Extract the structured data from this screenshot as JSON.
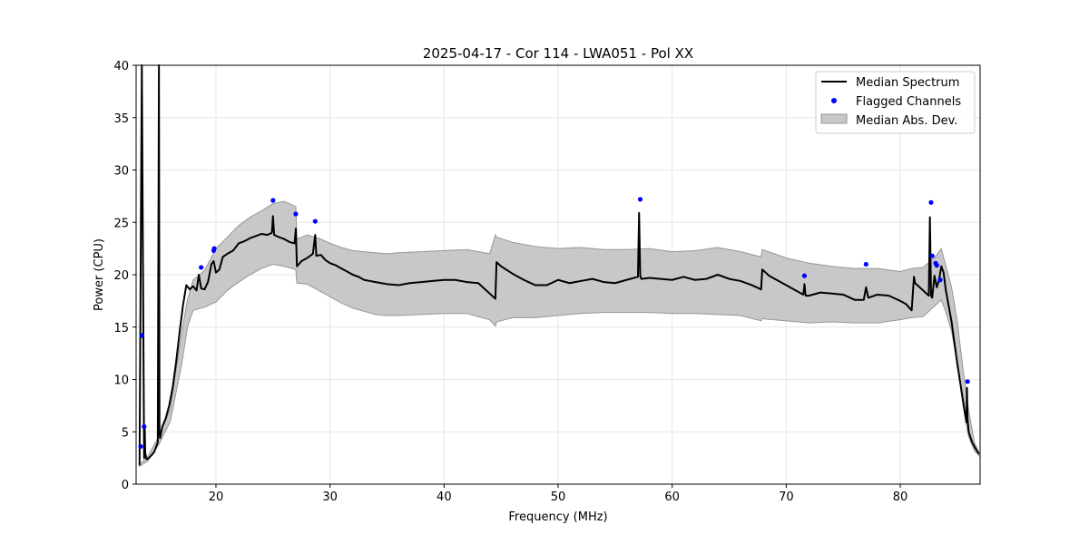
{
  "chart_data": {
    "type": "line",
    "title": "2025-04-17 - Cor 114 - LWA051 - Pol XX",
    "xlabel": "Frequency (MHz)",
    "ylabel": "Power (CPU)",
    "xlim": [
      13,
      87
    ],
    "ylim": [
      0,
      40
    ],
    "xticks": [
      20,
      30,
      40,
      50,
      60,
      70,
      80
    ],
    "yticks": [
      0,
      5,
      10,
      15,
      20,
      25,
      30,
      35,
      40
    ],
    "grid": true,
    "legend_position": "top-right",
    "legend": [
      "Median Spectrum",
      "Flagged Channels",
      "Median Abs. Dev."
    ],
    "colors": {
      "line": "#000000",
      "flagged": "#0000ff",
      "band_fill": "#c8c8c8",
      "band_edge": "#969696",
      "grid": "#e6e6e6"
    },
    "series": [
      {
        "name": "Median Spectrum",
        "x": [
          13.3,
          13.5,
          13.7,
          13.75,
          13.8,
          13.9,
          14.0,
          14.3,
          14.6,
          14.9,
          15.0,
          15.05,
          15.1,
          15.3,
          15.6,
          15.9,
          16.2,
          16.5,
          16.8,
          17.1,
          17.4,
          17.7,
          18.0,
          18.3,
          18.5,
          18.7,
          19.0,
          19.3,
          19.6,
          19.8,
          20.0,
          20.3,
          20.6,
          21.0,
          21.5,
          22.0,
          22.5,
          23.0,
          23.5,
          24.0,
          24.5,
          24.9,
          25.0,
          25.1,
          25.5,
          26.0,
          26.5,
          26.9,
          27.0,
          27.1,
          27.5,
          28.0,
          28.5,
          28.7,
          28.8,
          29.2,
          29.6,
          30.0,
          30.5,
          31.0,
          31.5,
          32.0,
          32.5,
          33.0,
          33.5,
          34.0,
          34.5,
          35.0,
          36.0,
          37.0,
          38.0,
          39.0,
          40.0,
          41.0,
          42.0,
          43.0,
          44.0,
          44.5,
          44.6,
          45.0,
          46.0,
          47.0,
          48.0,
          49.0,
          50.0,
          51.0,
          52.0,
          53.0,
          54.0,
          55.0,
          56.0,
          57.0,
          57.1,
          57.2,
          57.3,
          58.0,
          59.0,
          60.0,
          61.0,
          62.0,
          63.0,
          64.0,
          65.0,
          66.0,
          67.0,
          67.8,
          67.9,
          68.5,
          69.0,
          70.0,
          71.0,
          71.5,
          71.6,
          71.7,
          72.0,
          73.0,
          74.0,
          75.0,
          76.0,
          76.8,
          77.0,
          77.2,
          78.0,
          79.0,
          80.0,
          80.5,
          81.0,
          81.2,
          81.3,
          82.0,
          82.5,
          82.6,
          82.7,
          82.8,
          83.0,
          83.2,
          83.4,
          83.6,
          83.8,
          84.0,
          84.5,
          85.0,
          85.5,
          85.8,
          85.85,
          85.9,
          86.0,
          86.3,
          86.6,
          86.9
        ],
        "values": [
          1.8,
          40.0,
          2.5,
          5.5,
          3.0,
          2.4,
          2.4,
          2.7,
          3.1,
          4.0,
          40.0,
          5.0,
          4.4,
          5.5,
          6.3,
          7.5,
          9.2,
          11.6,
          14.4,
          17.0,
          19.0,
          18.6,
          18.9,
          18.5,
          20.0,
          18.7,
          18.6,
          19.3,
          21.0,
          21.3,
          20.2,
          20.5,
          21.7,
          22.0,
          22.3,
          23.0,
          23.2,
          23.5,
          23.7,
          23.9,
          23.8,
          24.0,
          25.6,
          23.8,
          23.6,
          23.4,
          23.1,
          23.0,
          24.4,
          20.8,
          21.3,
          21.6,
          22.0,
          23.8,
          21.8,
          21.9,
          21.4,
          21.1,
          20.9,
          20.6,
          20.3,
          20.0,
          19.8,
          19.5,
          19.4,
          19.3,
          19.2,
          19.1,
          19.0,
          19.2,
          19.3,
          19.4,
          19.5,
          19.5,
          19.3,
          19.2,
          18.2,
          17.7,
          21.2,
          20.8,
          20.1,
          19.5,
          19.0,
          19.0,
          19.5,
          19.2,
          19.4,
          19.6,
          19.3,
          19.2,
          19.5,
          19.8,
          25.9,
          19.9,
          19.6,
          19.7,
          19.6,
          19.5,
          19.8,
          19.5,
          19.6,
          20.0,
          19.6,
          19.4,
          19.0,
          18.6,
          20.5,
          19.9,
          19.6,
          19.0,
          18.4,
          18.1,
          19.1,
          18.0,
          18.0,
          18.3,
          18.2,
          18.1,
          17.6,
          17.6,
          18.8,
          17.8,
          18.1,
          18.0,
          17.5,
          17.2,
          16.6,
          19.8,
          19.2,
          18.5,
          18.0,
          25.5,
          18.0,
          17.8,
          19.9,
          18.8,
          19.5,
          20.8,
          20.2,
          18.5,
          15.5,
          11.5,
          8.0,
          5.9,
          9.2,
          6.2,
          5.0,
          4.0,
          3.4,
          2.9
        ]
      },
      {
        "name": "Median Abs. Dev.",
        "x": [
          13.3,
          14.0,
          15.0,
          16.0,
          17.0,
          17.5,
          18.0,
          19.0,
          20.0,
          21.0,
          22.0,
          23.0,
          24.0,
          25.0,
          26.0,
          27.0,
          27.1,
          28.0,
          29.0,
          30.0,
          31.0,
          32.0,
          33.0,
          34.0,
          35.0,
          36.0,
          38.0,
          40.0,
          42.0,
          44.0,
          44.5,
          44.6,
          46.0,
          48.0,
          50.0,
          52.0,
          54.0,
          56.0,
          58.0,
          60.0,
          62.0,
          64.0,
          66.0,
          67.8,
          67.9,
          70.0,
          72.0,
          74.0,
          76.0,
          78.0,
          80.0,
          81.0,
          82.0,
          83.0,
          83.6,
          84.0,
          84.5,
          85.0,
          85.5,
          86.0,
          86.5,
          86.9
        ],
        "upper": [
          1.9,
          2.6,
          4.6,
          7.2,
          14.5,
          17.6,
          19.5,
          20.4,
          22.5,
          23.6,
          24.7,
          25.5,
          26.1,
          26.8,
          27.0,
          26.5,
          23.4,
          23.8,
          23.5,
          23.0,
          22.6,
          22.3,
          22.2,
          22.1,
          22.0,
          22.1,
          22.2,
          22.3,
          22.4,
          22.0,
          23.8,
          23.6,
          23.1,
          22.7,
          22.5,
          22.6,
          22.4,
          22.4,
          22.5,
          22.2,
          22.3,
          22.6,
          22.2,
          21.7,
          22.4,
          21.6,
          21.1,
          20.8,
          20.6,
          20.6,
          20.3,
          20.6,
          20.7,
          21.6,
          22.5,
          20.8,
          18.8,
          15.5,
          11.0,
          7.0,
          4.0,
          3.0
        ],
        "lower": [
          1.7,
          2.2,
          3.8,
          6.0,
          11.5,
          15.0,
          16.6,
          16.9,
          17.4,
          18.5,
          19.3,
          20.0,
          20.6,
          21.0,
          20.8,
          20.5,
          19.2,
          19.1,
          18.5,
          17.9,
          17.3,
          16.8,
          16.5,
          16.2,
          16.1,
          16.1,
          16.2,
          16.3,
          16.3,
          15.7,
          15.1,
          15.5,
          15.9,
          15.9,
          16.1,
          16.3,
          16.4,
          16.4,
          16.4,
          16.3,
          16.3,
          16.2,
          16.1,
          15.6,
          15.8,
          15.6,
          15.4,
          15.5,
          15.4,
          15.4,
          15.7,
          15.9,
          16.0,
          17.0,
          17.6,
          16.4,
          14.6,
          11.5,
          7.5,
          4.5,
          3.2,
          2.7
        ]
      },
      {
        "name": "Flagged Channels",
        "x": [
          13.4,
          13.5,
          13.7,
          18.7,
          19.8,
          19.85,
          25.0,
          27.0,
          28.7,
          57.2,
          71.6,
          77.0,
          82.7,
          82.8,
          83.1,
          83.2,
          83.5,
          85.9
        ],
        "values": [
          3.6,
          14.2,
          5.5,
          20.7,
          22.3,
          22.5,
          27.1,
          25.8,
          25.1,
          27.2,
          19.9,
          21.0,
          26.9,
          21.8,
          21.1,
          20.9,
          19.5,
          9.8
        ]
      }
    ]
  }
}
